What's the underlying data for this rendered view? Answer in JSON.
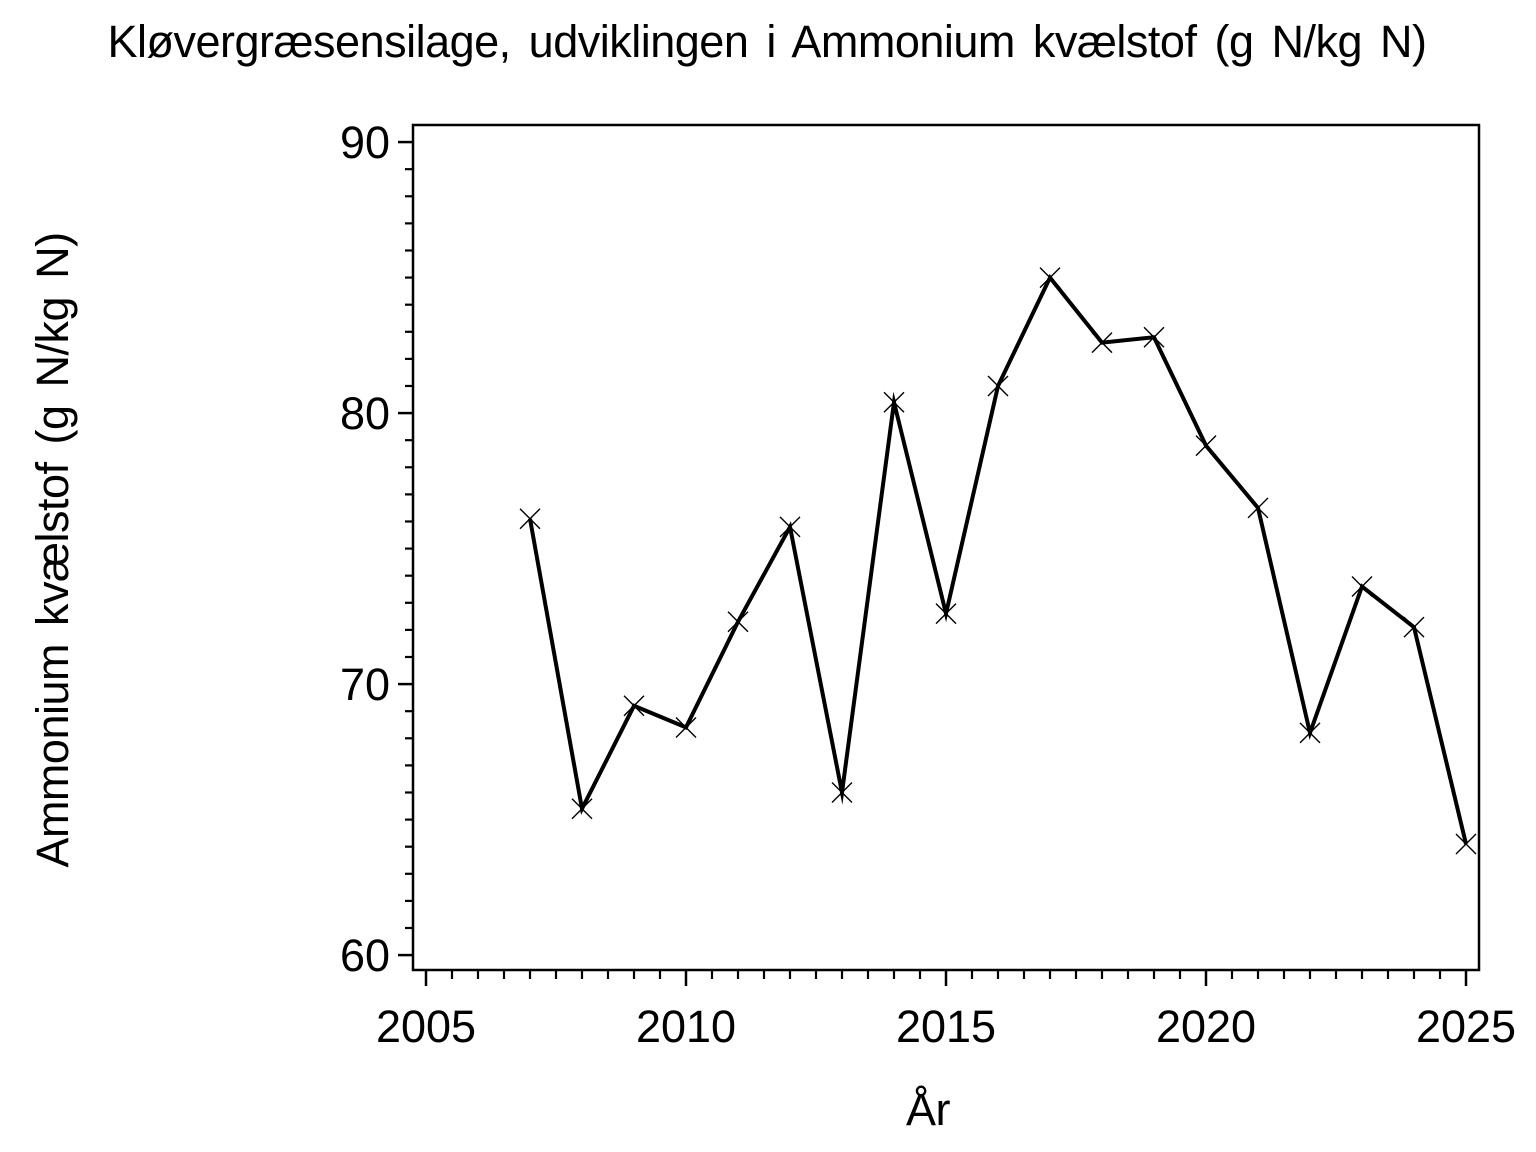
{
  "page": {
    "background": "#ffffff",
    "ink": "#000000"
  },
  "chart_data": {
    "type": "line",
    "title": "Kløvergræsensilage, udviklingen i Ammonium kvælstof (g N/kg N)",
    "xlabel": "År",
    "ylabel": "Ammonium kvælstof (g N/kg N)",
    "x": [
      2007,
      2008,
      2009,
      2010,
      2011,
      2012,
      2013,
      2014,
      2015,
      2016,
      2017,
      2018,
      2019,
      2020,
      2021,
      2022,
      2023,
      2024,
      2025
    ],
    "series": [
      {
        "name": "Ammonium kvælstof (g N/kg N)",
        "values": [
          76.1,
          65.4,
          69.2,
          68.4,
          72.3,
          75.8,
          66.0,
          80.4,
          72.6,
          81.0,
          85.0,
          82.6,
          82.8,
          78.8,
          76.5,
          68.2,
          73.6,
          72.1,
          64.1
        ]
      }
    ],
    "xlim": [
      2004.75,
      2025.25
    ],
    "ylim": [
      59.45,
      90.63
    ],
    "xticks_major": [
      2005,
      2010,
      2015,
      2020,
      2025
    ],
    "xtick_minor_step": 0.5,
    "yticks_major": [
      60,
      70,
      80,
      90
    ],
    "ytick_minor_step": 1,
    "marker": "x",
    "line_color": "#000000",
    "marker_color": "#000000",
    "grid": false,
    "legend_position": "none"
  }
}
